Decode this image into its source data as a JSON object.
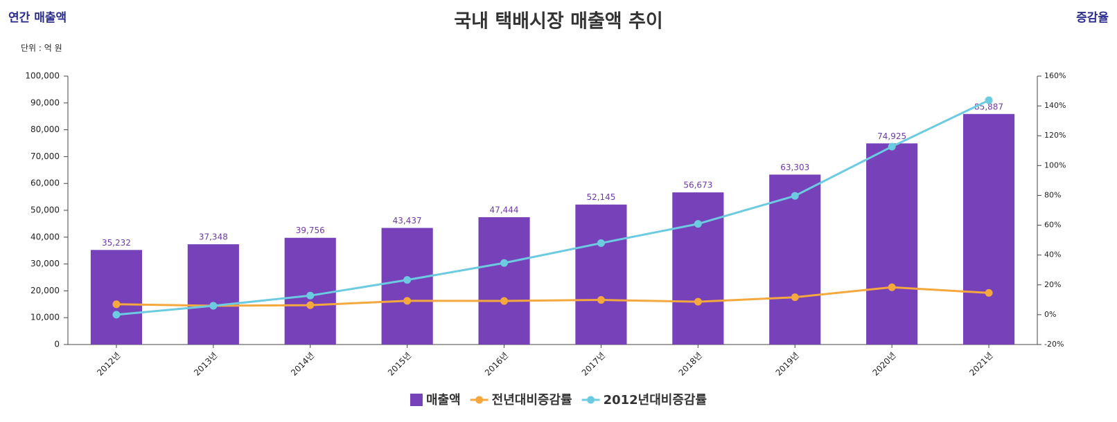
{
  "chart_data": {
    "type": "combo",
    "title": "국내 택배시장 매출액 추이",
    "y_label": "연간 매출액",
    "y2_label": "증감율",
    "unit_note": "단위 : 억 원",
    "categories": [
      "2012년",
      "2013년",
      "2014년",
      "2015년",
      "2016년",
      "2017년",
      "2018년",
      "2019년",
      "2020년",
      "2021년"
    ],
    "series": [
      {
        "name": "매출액",
        "type": "bar",
        "color": "#7741b9",
        "values": [
          35232,
          37348,
          39756,
          43437,
          47444,
          52145,
          56673,
          63303,
          74925,
          85887
        ],
        "value_labels": [
          "35,232",
          "37,348",
          "39,756",
          "43,437",
          "47,444",
          "52,145",
          "56,673",
          "63,303",
          "74,925",
          "85,887"
        ]
      },
      {
        "name": "전년대비증감률",
        "type": "line",
        "axis": "y2",
        "color": "#f4a83d",
        "values": [
          7,
          6,
          6.4,
          9.3,
          9.2,
          9.9,
          8.7,
          11.7,
          18.4,
          14.6
        ]
      },
      {
        "name": "2012년대비증감률",
        "type": "line",
        "axis": "y2",
        "color": "#6ccbe0",
        "values": [
          0,
          6,
          12.8,
          23.3,
          34.7,
          48,
          60.9,
          79.7,
          112.7,
          143.8
        ]
      }
    ],
    "ylim": [
      0,
      100000
    ],
    "yticks": [
      0,
      {
        "value": 10000,
        "label": "10,000"
      },
      {
        "value": 20000,
        "label": "20,000"
      },
      {
        "value": 30000,
        "label": "30,000"
      },
      {
        "value": 40000,
        "label": "40,000"
      },
      {
        "value": 50000,
        "label": "50,000"
      },
      {
        "value": 60000,
        "label": "60,000"
      },
      {
        "value": 70000,
        "label": "70,000"
      },
      {
        "value": 80000,
        "label": "80,000"
      },
      {
        "value": 90000,
        "label": "90,000"
      },
      {
        "value": 100000,
        "label": "100,000"
      }
    ],
    "y2lim": [
      -20,
      160
    ],
    "y2ticks": [
      {
        "value": -20,
        "label": "-20%"
      },
      {
        "value": 0,
        "label": "0%"
      },
      {
        "value": 20,
        "label": "20%"
      },
      {
        "value": 40,
        "label": "40%"
      },
      {
        "value": 60,
        "label": "60%"
      },
      {
        "value": 80,
        "label": "80%"
      },
      {
        "value": 100,
        "label": "100%"
      },
      {
        "value": 120,
        "label": "120%"
      },
      {
        "value": 140,
        "label": "140%"
      },
      {
        "value": 160,
        "label": "160%"
      }
    ],
    "legend": "bottom",
    "grid": false
  }
}
